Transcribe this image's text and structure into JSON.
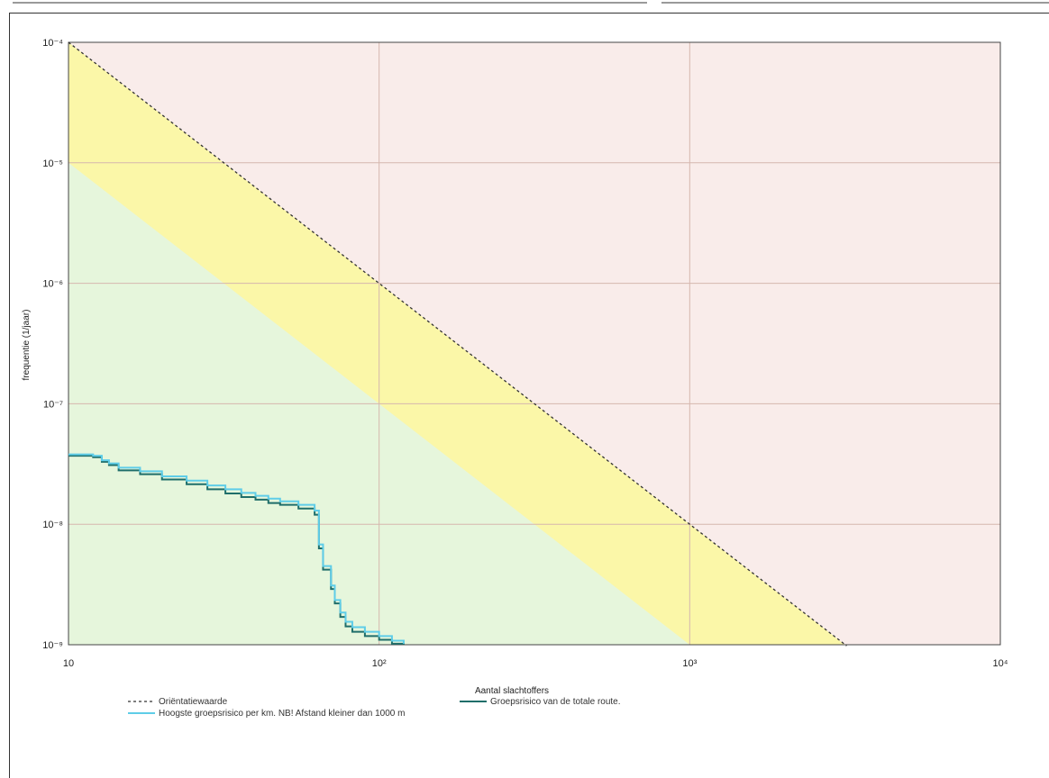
{
  "chart_data": {
    "type": "line",
    "title": "",
    "xlabel": "Aantal slachtoffers",
    "ylabel": "frequentie (1/jaar)",
    "x_scale": "log",
    "y_scale": "log",
    "xlim": [
      10,
      10000
    ],
    "ylim": [
      1e-09,
      0.0001
    ],
    "x_ticks": [
      "10",
      "10²",
      "10³",
      "10⁴"
    ],
    "y_ticks": [
      "10⁻⁴",
      "10⁻⁵",
      "10⁻⁶",
      "10⁻⁷",
      "10⁻⁸",
      "10⁻⁹"
    ],
    "grid": true,
    "legend_position": "bottom",
    "regions": {
      "upper_color": "#f9ecea",
      "band_color": "#fbf7a8",
      "lower_color": "#e6f6dc"
    },
    "series": [
      {
        "name": "Oriëntatiewaarde",
        "style": "dashed",
        "color": "#333333",
        "x": [
          10,
          100,
          1000,
          3200
        ],
        "y": [
          0.0001,
          1e-06,
          1e-08,
          9.8e-10
        ]
      },
      {
        "name": "Groepsrisico van de totale route.",
        "style": "step",
        "color": "#1f6e6a",
        "x": [
          10,
          12,
          12.8,
          13.5,
          14.5,
          17,
          20,
          24,
          28,
          32,
          36,
          40,
          44,
          48,
          55,
          62,
          64,
          66,
          70,
          72,
          75,
          78,
          82,
          90,
          100,
          110,
          120
        ],
        "y": [
          3.7e-08,
          3.6e-08,
          3.3e-08,
          3.1e-08,
          2.8e-08,
          2.6e-08,
          2.35e-08,
          2.15e-08,
          1.95e-08,
          1.8e-08,
          1.68e-08,
          1.6e-08,
          1.5e-08,
          1.45e-08,
          1.35e-08,
          1.2e-08,
          6.3e-09,
          4.2e-09,
          2.9e-09,
          2.2e-09,
          1.7e-09,
          1.42e-09,
          1.28e-09,
          1.18e-09,
          1.1e-09,
          1.02e-09,
          1e-09
        ]
      },
      {
        "name": "Hoogste groepsrisico per km. NB! Afstand kleiner dan 1000 m",
        "style": "step",
        "color": "#5fcde8",
        "x": [
          10,
          12,
          12.8,
          13.5,
          14.5,
          17,
          20,
          24,
          28,
          32,
          36,
          40,
          44,
          48,
          55,
          62,
          64,
          66,
          70,
          72,
          75,
          78,
          82,
          90,
          100,
          110,
          120
        ],
        "y": [
          3.8e-08,
          3.7e-08,
          3.4e-08,
          3.2e-08,
          2.95e-08,
          2.75e-08,
          2.5e-08,
          2.3e-08,
          2.1e-08,
          1.95e-08,
          1.82e-08,
          1.72e-08,
          1.63e-08,
          1.55e-08,
          1.45e-08,
          1.3e-08,
          6.8e-09,
          4.5e-09,
          3.1e-09,
          2.35e-09,
          1.85e-09,
          1.55e-09,
          1.4e-09,
          1.28e-09,
          1.18e-09,
          1.08e-09,
          1.02e-09
        ]
      }
    ]
  }
}
